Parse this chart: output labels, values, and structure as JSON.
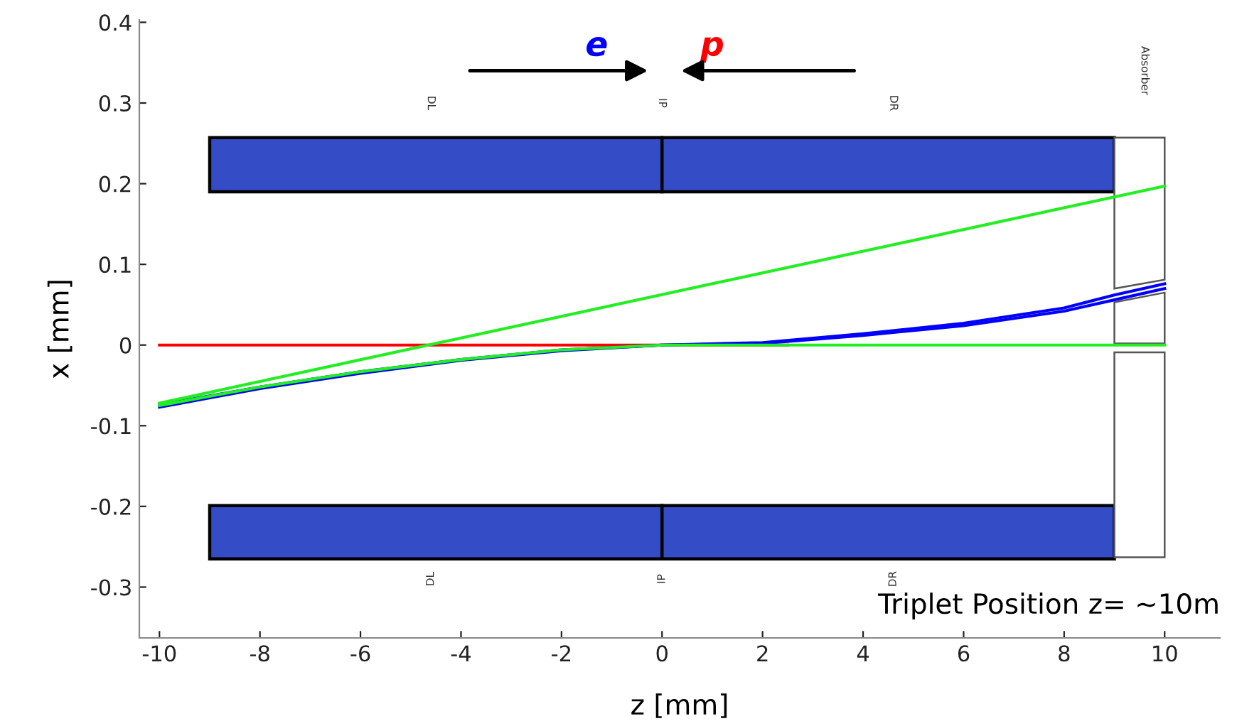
{
  "chart_data": {
    "type": "line",
    "xlabel": "z [mm]",
    "ylabel": "x [mm]",
    "xlim": [
      -10.4,
      11.1
    ],
    "ylim": [
      -0.363,
      0.403
    ],
    "xticks": [
      -10,
      -8,
      -6,
      -4,
      -2,
      0,
      2,
      4,
      6,
      8,
      10
    ],
    "yticks": [
      -0.3,
      -0.2,
      -0.1,
      0,
      0.1,
      0.2,
      0.3,
      0.4
    ],
    "grid": false,
    "series": [
      {
        "color": "#ff0000",
        "x": [
          -10,
          2.5
        ],
        "values": [
          0,
          0
        ]
      },
      {
        "color": "#0000ff",
        "x": [
          -10,
          -8,
          -6,
          -4,
          -2,
          0,
          2,
          4,
          6,
          8,
          9,
          10
        ],
        "values": [
          -0.077,
          -0.054,
          -0.035,
          -0.019,
          -0.007,
          0,
          0.003,
          0.014,
          0.027,
          0.046,
          0.062,
          0.076
        ]
      },
      {
        "color": "#0000ff",
        "x": [
          -10,
          -8,
          -6,
          -4,
          -2,
          0,
          2,
          4,
          6,
          8,
          9,
          10
        ],
        "values": [
          -0.074,
          -0.052,
          -0.033,
          -0.018,
          -0.006,
          0,
          0.002,
          0.012,
          0.024,
          0.042,
          0.056,
          0.07
        ]
      },
      {
        "color": "#22ee22",
        "x": [
          -10,
          -8,
          -6,
          -4,
          -2,
          0,
          10
        ],
        "values": [
          -0.075,
          -0.052,
          -0.033,
          -0.018,
          -0.006,
          0,
          0
        ]
      },
      {
        "color": "#22ee22",
        "x": [
          -10,
          10
        ],
        "values": [
          -0.072,
          0.197
        ]
      }
    ],
    "annotations": [
      "e",
      "p",
      "DL",
      "IP",
      "DR",
      "Absorber",
      "DL",
      "IP",
      "DR",
      "Triplet Position z= ~10m"
    ]
  }
}
